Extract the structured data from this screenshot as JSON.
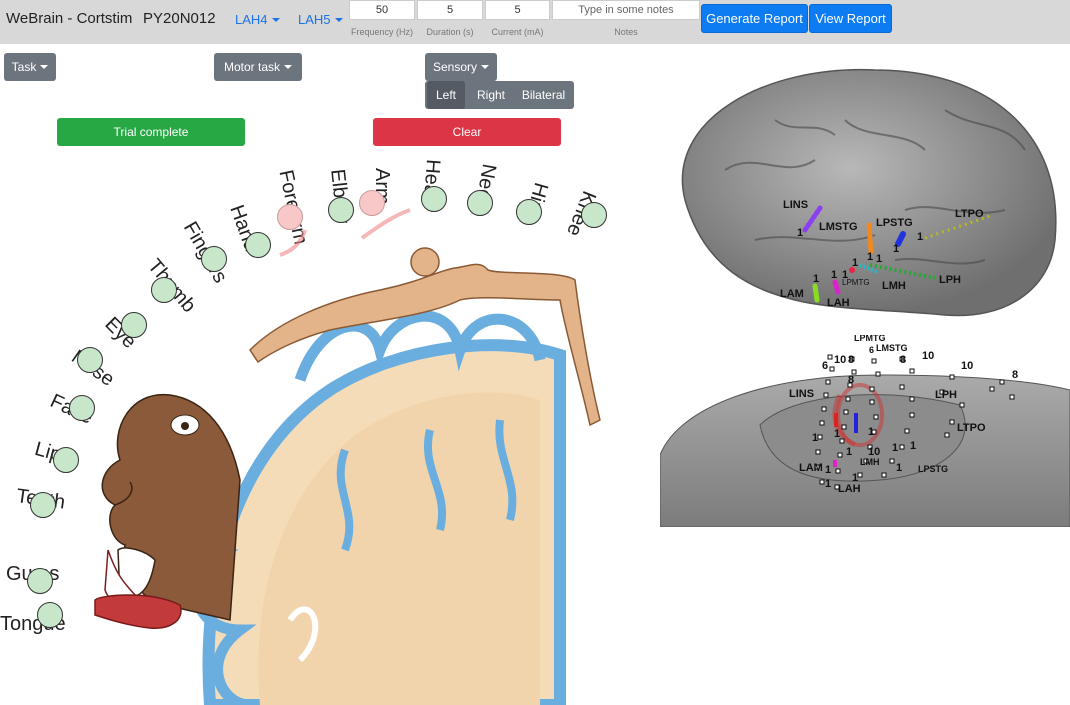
{
  "header": {
    "brand": "WeBrain - Cortstim",
    "patient_id": "PY20N012",
    "contact_1": "LAH4",
    "contact_2": "LAH5",
    "frequency": {
      "value": "50",
      "label": "Frequency (Hz)"
    },
    "duration": {
      "value": "5",
      "label": "Duration (s)"
    },
    "current": {
      "value": "5",
      "label": "Current (mA)"
    },
    "notes": {
      "placeholder": "Type in some notes",
      "label": "Notes"
    },
    "generate_report": "Generate Report",
    "view_report": "View Report"
  },
  "controls": {
    "task": "Task",
    "motor_task": "Motor task",
    "sensory": "Sensory",
    "sides": [
      "Left",
      "Right",
      "Bilateral"
    ],
    "active_side": "Left",
    "trial_complete": "Trial complete",
    "clear": "Clear"
  },
  "homunculus": {
    "parts": [
      "Tongue",
      "Gums",
      "Teeth",
      "Lips",
      "Face",
      "Nose",
      "Eye",
      "Thumb",
      "Fingers",
      "Hand",
      "Forearm",
      "Elbow",
      "Arm",
      "Head",
      "Neck",
      "Hip",
      "Knee"
    ],
    "selected": [
      "Forearm",
      "Arm"
    ]
  },
  "brain_lateral": {
    "labels": [
      "LINS",
      "LMSTG",
      "LPSTG",
      "LTPO",
      "LPMTG",
      "LMH",
      "LPH",
      "LAM",
      "LAH"
    ],
    "numbers": [
      "1",
      "1",
      "1",
      "1",
      "1",
      "1",
      "1",
      "1",
      "1"
    ]
  },
  "brain_medial": {
    "labels": [
      "LPMTG",
      "LMSTG",
      "LINS",
      "LPH",
      "LTPO",
      "LMH",
      "LPSTG",
      "LAM",
      "LAH"
    ],
    "numbers": [
      "6",
      "8",
      "8",
      "10",
      "6",
      "10",
      "10",
      "8",
      "8",
      "1",
      "1",
      "1",
      "1",
      "10",
      "1",
      "1",
      "1",
      "1",
      "1",
      "1"
    ]
  },
  "colors": {
    "header_bg": "#d8d8d8",
    "primary": "#0d7bf2",
    "secondary": "#6c757d",
    "success": "#28a745",
    "danger": "#dc3545",
    "part_default": "#c8e6c9",
    "part_selected": "#f8c8c8"
  }
}
